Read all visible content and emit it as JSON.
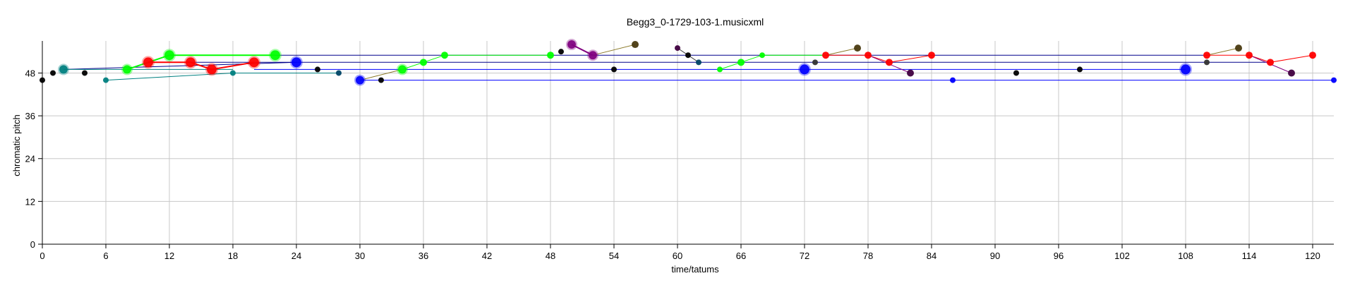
{
  "chart_data": {
    "type": "scatter",
    "title": "Begg3_0-1729-103-1.musicxml",
    "xlabel": "time/tatums",
    "ylabel": "chromatic pitch",
    "xlim": [
      0,
      122
    ],
    "ylim": [
      0,
      57
    ],
    "xticks": [
      0,
      6,
      12,
      18,
      24,
      30,
      36,
      42,
      48,
      54,
      60,
      66,
      72,
      78,
      84,
      90,
      96,
      102,
      108,
      114,
      120
    ],
    "yticks": [
      0,
      12,
      24,
      36,
      48
    ],
    "grid": true,
    "colors": {
      "grid": "#c8c8c8",
      "axis": "#000000",
      "red": "#ff0000",
      "green": "#00ff00",
      "blue": "#0000ff",
      "darkblue": "#000080",
      "teal": "#008080",
      "purple": "#800080",
      "olive": "#8b7a2a",
      "black": "#000000"
    },
    "lines": [
      {
        "color": "#00008b",
        "width": 1,
        "points": [
          [
            2,
            49
          ],
          [
            24,
            51
          ]
        ]
      },
      {
        "color": "#00008b",
        "width": 1,
        "points": [
          [
            14,
            51
          ],
          [
            116,
            51
          ]
        ]
      },
      {
        "color": "#00008b",
        "width": 1,
        "points": [
          [
            22,
            53
          ],
          [
            110,
            53
          ]
        ]
      },
      {
        "color": "#0000ff",
        "width": 1,
        "points": [
          [
            20,
            49
          ],
          [
            108,
            49
          ]
        ]
      },
      {
        "color": "#0000ff",
        "width": 1,
        "points": [
          [
            30,
            46
          ],
          [
            122,
            46
          ]
        ]
      },
      {
        "color": "#008080",
        "width": 1,
        "points": [
          [
            2,
            49
          ],
          [
            18,
            49
          ]
        ]
      },
      {
        "color": "#008080",
        "width": 1,
        "points": [
          [
            6,
            46
          ],
          [
            18,
            48
          ],
          [
            28,
            48
          ]
        ]
      },
      {
        "color": "#00ff00",
        "width": 2,
        "points": [
          [
            8,
            49
          ],
          [
            12,
            53
          ],
          [
            22,
            53
          ]
        ]
      },
      {
        "color": "#00ff00",
        "width": 1,
        "points": [
          [
            34,
            49
          ],
          [
            36,
            51
          ],
          [
            38,
            53
          ],
          [
            48,
            53
          ]
        ]
      },
      {
        "color": "#00ff00",
        "width": 1,
        "points": [
          [
            64,
            49
          ],
          [
            66,
            51
          ],
          [
            68,
            53
          ],
          [
            74,
            53
          ]
        ]
      },
      {
        "color": "#ff0000",
        "width": 2,
        "points": [
          [
            10,
            51
          ],
          [
            14,
            51
          ],
          [
            16,
            49
          ],
          [
            20,
            51
          ]
        ]
      },
      {
        "color": "#ff0000",
        "width": 1,
        "points": [
          [
            74,
            53
          ],
          [
            78,
            53
          ],
          [
            80,
            51
          ],
          [
            84,
            53
          ]
        ]
      },
      {
        "color": "#ff0000",
        "width": 1,
        "points": [
          [
            110,
            53
          ],
          [
            114,
            53
          ],
          [
            116,
            51
          ],
          [
            120,
            53
          ]
        ]
      },
      {
        "color": "#800080",
        "width": 2,
        "points": [
          [
            50,
            56
          ],
          [
            52,
            53
          ]
        ]
      },
      {
        "color": "#800080",
        "width": 1,
        "points": [
          [
            78,
            53
          ],
          [
            82,
            48
          ]
        ]
      },
      {
        "color": "#800080",
        "width": 1,
        "points": [
          [
            114,
            53
          ],
          [
            118,
            48
          ]
        ]
      },
      {
        "color": "#8b7a2a",
        "width": 1,
        "points": [
          [
            52,
            53
          ],
          [
            56,
            56
          ]
        ]
      },
      {
        "color": "#8b7a2a",
        "width": 1,
        "points": [
          [
            30,
            46
          ],
          [
            34,
            49
          ]
        ]
      },
      {
        "color": "#8b7a2a",
        "width": 1,
        "points": [
          [
            74,
            53
          ],
          [
            77,
            55
          ]
        ]
      },
      {
        "color": "#8b7a2a",
        "width": 1,
        "points": [
          [
            110,
            53
          ],
          [
            113,
            55
          ]
        ]
      },
      {
        "color": "#444444",
        "width": 1,
        "points": [
          [
            60,
            55
          ],
          [
            62,
            51
          ]
        ]
      }
    ],
    "points": [
      {
        "x": 0,
        "y": 46,
        "color": "#000000",
        "size": 4
      },
      {
        "x": 1,
        "y": 48,
        "color": "#000000",
        "size": 4
      },
      {
        "x": 2,
        "y": 49,
        "color": "#008080",
        "size": 6
      },
      {
        "x": 4,
        "y": 48,
        "color": "#000000",
        "size": 4
      },
      {
        "x": 6,
        "y": 46,
        "color": "#008080",
        "size": 4
      },
      {
        "x": 8,
        "y": 49,
        "color": "#00ff00",
        "size": 6
      },
      {
        "x": 10,
        "y": 51,
        "color": "#ff0000",
        "size": 7
      },
      {
        "x": 12,
        "y": 53,
        "color": "#00ff00",
        "size": 7
      },
      {
        "x": 14,
        "y": 51,
        "color": "#ff0000",
        "size": 7
      },
      {
        "x": 16,
        "y": 49,
        "color": "#ff0000",
        "size": 7
      },
      {
        "x": 18,
        "y": 48,
        "color": "#008080",
        "size": 4
      },
      {
        "x": 20,
        "y": 51,
        "color": "#ff0000",
        "size": 7
      },
      {
        "x": 22,
        "y": 53,
        "color": "#00ff00",
        "size": 7
      },
      {
        "x": 24,
        "y": 51,
        "color": "#0000ff",
        "size": 7
      },
      {
        "x": 26,
        "y": 49,
        "color": "#000000",
        "size": 4
      },
      {
        "x": 28,
        "y": 48,
        "color": "#004466",
        "size": 4
      },
      {
        "x": 30,
        "y": 46,
        "color": "#0000ff",
        "size": 6
      },
      {
        "x": 32,
        "y": 46,
        "color": "#000000",
        "size": 4
      },
      {
        "x": 34,
        "y": 49,
        "color": "#00ff00",
        "size": 6
      },
      {
        "x": 36,
        "y": 51,
        "color": "#00ff00",
        "size": 5
      },
      {
        "x": 38,
        "y": 53,
        "color": "#00ff00",
        "size": 5
      },
      {
        "x": 48,
        "y": 53,
        "color": "#00ff00",
        "size": 5
      },
      {
        "x": 49,
        "y": 54,
        "color": "#000000",
        "size": 4
      },
      {
        "x": 50,
        "y": 56,
        "color": "#800080",
        "size": 6
      },
      {
        "x": 52,
        "y": 53,
        "color": "#800080",
        "size": 6
      },
      {
        "x": 54,
        "y": 49,
        "color": "#000000",
        "size": 4
      },
      {
        "x": 56,
        "y": 56,
        "color": "#4a3a10",
        "size": 5
      },
      {
        "x": 60,
        "y": 55,
        "color": "#400040",
        "size": 4
      },
      {
        "x": 61,
        "y": 53,
        "color": "#000000",
        "size": 4
      },
      {
        "x": 62,
        "y": 51,
        "color": "#004466",
        "size": 4
      },
      {
        "x": 64,
        "y": 49,
        "color": "#00ff00",
        "size": 4
      },
      {
        "x": 66,
        "y": 51,
        "color": "#00ff00",
        "size": 5
      },
      {
        "x": 68,
        "y": 53,
        "color": "#00ff00",
        "size": 4
      },
      {
        "x": 72,
        "y": 49,
        "color": "#0000ff",
        "size": 7
      },
      {
        "x": 73,
        "y": 51,
        "color": "#333333",
        "size": 4
      },
      {
        "x": 74,
        "y": 53,
        "color": "#ff0000",
        "size": 5
      },
      {
        "x": 77,
        "y": 55,
        "color": "#4a3a10",
        "size": 5
      },
      {
        "x": 78,
        "y": 53,
        "color": "#ff0000",
        "size": 5
      },
      {
        "x": 80,
        "y": 51,
        "color": "#ff0000",
        "size": 5
      },
      {
        "x": 82,
        "y": 48,
        "color": "#400040",
        "size": 5
      },
      {
        "x": 84,
        "y": 53,
        "color": "#ff0000",
        "size": 5
      },
      {
        "x": 86,
        "y": 46,
        "color": "#0000ff",
        "size": 4
      },
      {
        "x": 92,
        "y": 48,
        "color": "#000000",
        "size": 4
      },
      {
        "x": 98,
        "y": 49,
        "color": "#000000",
        "size": 4
      },
      {
        "x": 108,
        "y": 49,
        "color": "#0000ff",
        "size": 7
      },
      {
        "x": 110,
        "y": 51,
        "color": "#333333",
        "size": 4
      },
      {
        "x": 110,
        "y": 53,
        "color": "#ff0000",
        "size": 5
      },
      {
        "x": 113,
        "y": 55,
        "color": "#4a3a10",
        "size": 5
      },
      {
        "x": 114,
        "y": 53,
        "color": "#ff0000",
        "size": 5
      },
      {
        "x": 116,
        "y": 51,
        "color": "#ff0000",
        "size": 5
      },
      {
        "x": 118,
        "y": 48,
        "color": "#400040",
        "size": 5
      },
      {
        "x": 120,
        "y": 53,
        "color": "#ff0000",
        "size": 5
      },
      {
        "x": 122,
        "y": 46,
        "color": "#0000ff",
        "size": 4
      }
    ]
  }
}
